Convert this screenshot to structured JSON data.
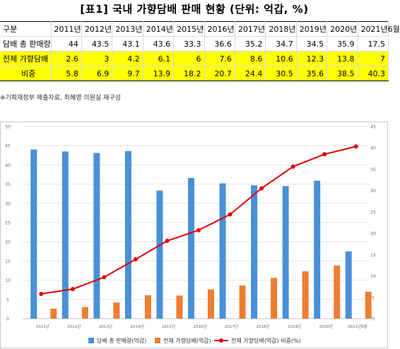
{
  "title": "[표1] 국내 가향담배 판매 현황 (단위: 억갑, %)",
  "table": {
    "header": [
      "구분",
      "2011년",
      "2012년",
      "2013년",
      "2014년",
      "2015년",
      "2016년",
      "2017년",
      "2018년",
      "2019년",
      "2020년",
      "2021년6월"
    ],
    "rows": [
      {
        "label": "담배 총 판매량",
        "values": [
          "44",
          "43.5",
          "43.1",
          "43.6",
          "33.3",
          "36.6",
          "35.2",
          "34.7",
          "34.5",
          "35.9",
          "17.5"
        ]
      },
      {
        "label": "전체 가향담배",
        "values": [
          "2.6",
          "3",
          "4.2",
          "6.1",
          "6",
          "7.6",
          "8.6",
          "10.6",
          "12.3",
          "13.8",
          "7"
        ]
      },
      {
        "label": "비중",
        "values": [
          "5.8",
          "6.9",
          "9.7",
          "13.9",
          "18.2",
          "20.7",
          "24.4",
          "30.5",
          "35.6",
          "38.5",
          "40.3"
        ]
      }
    ]
  },
  "source": "※기획재정부 제출자료, 최혜영 의원실 재구성",
  "chart_data": {
    "type": "bar",
    "categories": [
      "2011년",
      "2012년",
      "2013년",
      "2014년",
      "2015년",
      "2016년",
      "2017년",
      "2018년",
      "2019년",
      "2020년",
      "2021년6월"
    ],
    "series": [
      {
        "name": "담배 총 판매량(억갑)",
        "type": "bar",
        "axis": "left",
        "color": "#4a90d9",
        "values": [
          44,
          43.5,
          43.1,
          43.6,
          33.3,
          36.6,
          35.2,
          34.7,
          34.5,
          35.9,
          17.5
        ]
      },
      {
        "name": "전체 가향담배(억갑)",
        "type": "bar",
        "axis": "left",
        "color": "#ed7d31",
        "values": [
          2.6,
          3,
          4.2,
          6.1,
          6,
          7.6,
          8.6,
          10.6,
          12.3,
          13.8,
          7
        ]
      },
      {
        "name": "전체 가향담배(억갑) 비중(%)",
        "type": "line",
        "axis": "right",
        "color": "#e00000",
        "values": [
          5.8,
          6.9,
          9.7,
          13.9,
          18.2,
          20.7,
          24.4,
          30.5,
          35.6,
          38.5,
          40.3
        ]
      }
    ],
    "y_left": {
      "min": 0,
      "max": 50,
      "ticks": [
        0,
        5,
        10,
        15,
        20,
        25,
        30,
        35,
        40,
        45,
        50
      ]
    },
    "y_right": {
      "min": 0,
      "max": 45,
      "ticks": [
        0,
        5,
        10,
        15,
        20,
        25,
        30,
        35,
        40,
        45
      ]
    },
    "grid": true,
    "legend_position": "bottom"
  }
}
